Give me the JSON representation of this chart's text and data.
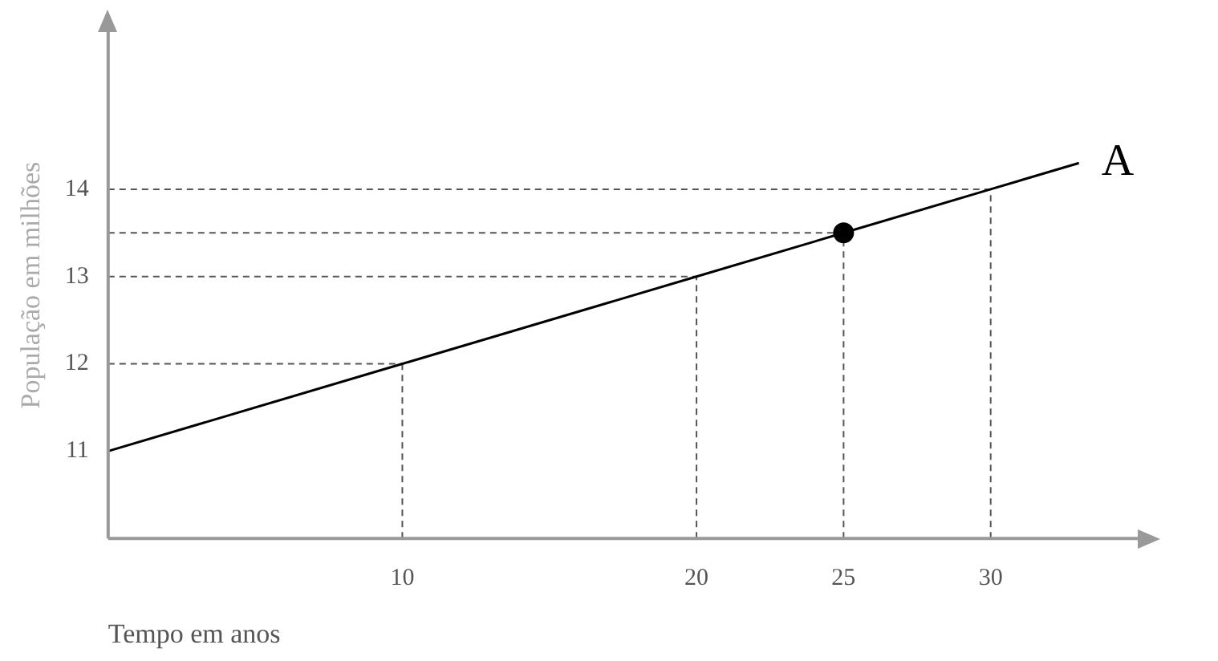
{
  "chart_data": {
    "type": "line",
    "xlabel": "Tempo em anos",
    "ylabel": "População em milhões",
    "xlim": [
      0,
      35
    ],
    "ylim": [
      10,
      15.8
    ],
    "xticks": [
      10,
      20,
      25,
      30
    ],
    "yticks": [
      11,
      12,
      13,
      14
    ],
    "grid": false,
    "legend": false,
    "series": [
      {
        "name": "A",
        "color": "#000000",
        "x": [
          0,
          10,
          20,
          25,
          30,
          33
        ],
        "values": [
          11,
          12,
          13,
          13.5,
          14,
          14.3
        ],
        "marker": "none"
      },
      {
        "type": "scatter",
        "color": "#000000",
        "x": [
          25
        ],
        "values": [
          13.5
        ],
        "marker": "circle"
      }
    ],
    "ref_lines": [
      {
        "axis": "x",
        "value": 10,
        "line_style": "dashed"
      },
      {
        "axis": "x",
        "value": 20,
        "line_style": "dashed"
      },
      {
        "axis": "x",
        "value": 25,
        "line_style": "dashed"
      },
      {
        "axis": "x",
        "value": 30,
        "line_style": "dashed"
      },
      {
        "axis": "y",
        "value": 12,
        "line_style": "dashed"
      },
      {
        "axis": "y",
        "value": 13,
        "line_style": "dashed"
      },
      {
        "axis": "y",
        "value": 13.5,
        "line_style": "dashed"
      },
      {
        "axis": "y",
        "value": 14,
        "line_style": "dashed"
      }
    ]
  }
}
